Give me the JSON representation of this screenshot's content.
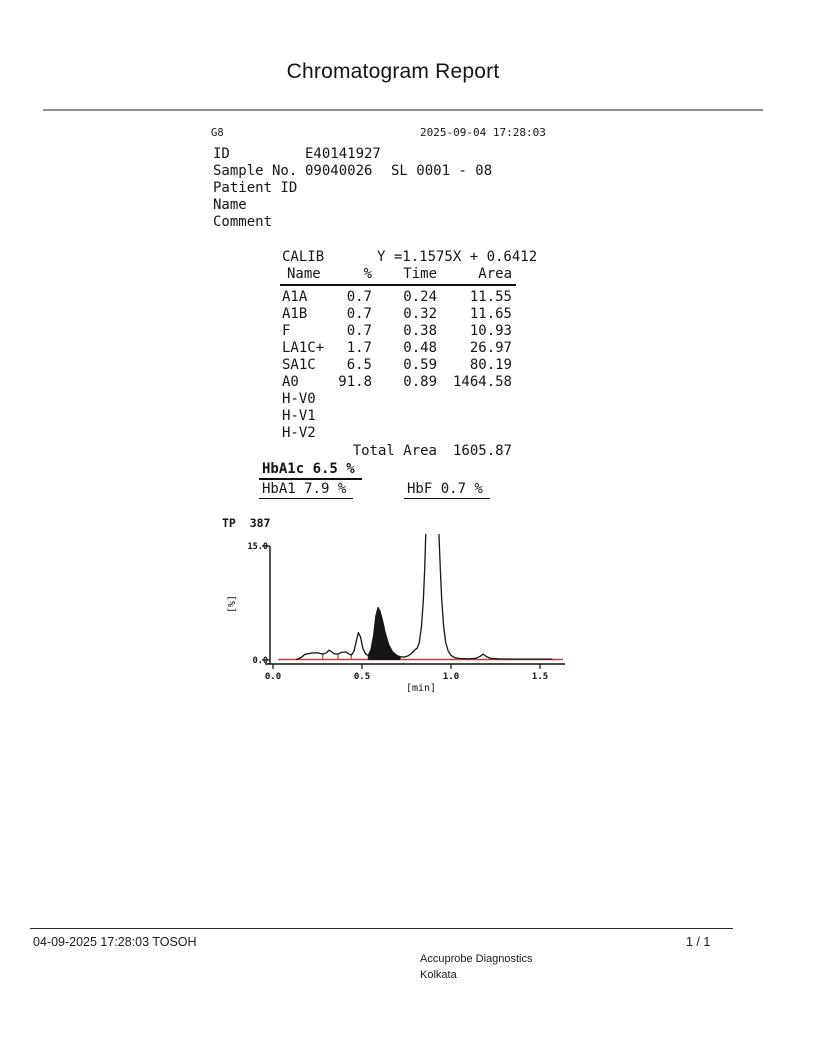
{
  "page": {
    "title": "Chromatogram Report",
    "footer": {
      "left": "04-09-2025 17:28:03  TOSOH",
      "page_num": "1 / 1",
      "org_name": "Accuprobe Diagnostics",
      "org_city": "Kolkata"
    }
  },
  "report": {
    "device": "G8",
    "datetime": "2025-09-04 17:28:03",
    "fields": [
      {
        "label": "ID",
        "value": "E40141927",
        "extra": ""
      },
      {
        "label": "Sample No.",
        "value": "09040026",
        "extra": "SL 0001 - 08"
      },
      {
        "label": "Patient ID",
        "value": "",
        "extra": ""
      },
      {
        "label": "Name",
        "value": "",
        "extra": ""
      },
      {
        "label": "Comment",
        "value": "",
        "extra": ""
      }
    ],
    "calib": {
      "label": "CALIB",
      "equation": "Y =1.1575X + 0.6412"
    },
    "table": {
      "headers": [
        "Name",
        "%",
        "Time",
        "Area"
      ],
      "rows": [
        {
          "name": "A1A",
          "pct": "0.7",
          "time": "0.24",
          "area": "11.55"
        },
        {
          "name": "A1B",
          "pct": "0.7",
          "time": "0.32",
          "area": "11.65"
        },
        {
          "name": "F",
          "pct": "0.7",
          "time": "0.38",
          "area": "10.93"
        },
        {
          "name": "LA1C+",
          "pct": "1.7",
          "time": "0.48",
          "area": "26.97"
        },
        {
          "name": "SA1C",
          "pct": "6.5",
          "time": "0.59",
          "area": "80.19"
        },
        {
          "name": "A0",
          "pct": "91.8",
          "time": "0.89",
          "area": "1464.58"
        },
        {
          "name": "H-V0",
          "pct": "",
          "time": "",
          "area": ""
        },
        {
          "name": "H-V1",
          "pct": "",
          "time": "",
          "area": ""
        },
        {
          "name": "H-V2",
          "pct": "",
          "time": "",
          "area": ""
        }
      ],
      "total_label": "Total Area",
      "total_value": "1605.87"
    },
    "results": {
      "hba1c": "HbA1c 6.5 %",
      "hba1": "HbA1 7.9 %",
      "hbf": "HbF 0.7 %"
    }
  },
  "chart_data": {
    "type": "line",
    "title": "TP  387",
    "xlabel": "[min]",
    "ylabel": "[%]",
    "xlim": [
      0.0,
      1.65
    ],
    "ylim": [
      0.0,
      15.0
    ],
    "x_ticks": [
      0.0,
      0.5,
      1.0,
      1.5
    ],
    "x_tick_labels": [
      "0.0",
      "0.5",
      "1.0",
      "1.5"
    ],
    "y_ticks": [
      {
        "v": 15.0,
        "label": "15.0"
      },
      {
        "v": 0.0,
        "label": "0.0"
      }
    ],
    "trace_color": "#161616",
    "baseline": {
      "x1": 0.03,
      "x2": 1.63,
      "color": "#b5433a"
    },
    "fill_base": {
      "x1": 0.535,
      "x2": 0.715,
      "color": "#7a140c"
    },
    "peak_markers": [
      {
        "x": 0.28,
        "h": 0.8
      },
      {
        "x": 0.365,
        "h": 0.75
      },
      {
        "x": 0.44,
        "h": 0.62
      },
      {
        "x": 0.535,
        "h": 0.6
      },
      {
        "x": 0.715,
        "h": 0.45
      }
    ],
    "clip_note": "A0 peak clipped at plot top",
    "peaks": [
      {
        "name": "A1A",
        "time": 0.24
      },
      {
        "name": "A1B",
        "time": 0.32
      },
      {
        "name": "F",
        "time": 0.38
      },
      {
        "name": "LA1C+",
        "time": 0.48
      },
      {
        "name": "SA1C",
        "time": 0.59,
        "filled": true
      },
      {
        "name": "A0",
        "time": 0.89
      }
    ],
    "trace": [
      [
        0.13,
        0.05
      ],
      [
        0.16,
        0.35
      ],
      [
        0.18,
        0.75
      ],
      [
        0.22,
        0.92
      ],
      [
        0.25,
        0.95
      ],
      [
        0.28,
        0.78
      ],
      [
        0.3,
        0.95
      ],
      [
        0.315,
        1.3
      ],
      [
        0.33,
        1.05
      ],
      [
        0.345,
        0.8
      ],
      [
        0.365,
        0.78
      ],
      [
        0.385,
        1.0
      ],
      [
        0.41,
        1.05
      ],
      [
        0.425,
        0.82
      ],
      [
        0.44,
        0.65
      ],
      [
        0.455,
        1.15
      ],
      [
        0.47,
        2.7
      ],
      [
        0.48,
        3.6
      ],
      [
        0.492,
        3.0
      ],
      [
        0.505,
        1.5
      ],
      [
        0.52,
        0.8
      ],
      [
        0.535,
        0.6
      ],
      [
        0.55,
        1.3
      ],
      [
        0.565,
        3.2
      ],
      [
        0.578,
        5.8
      ],
      [
        0.59,
        6.9
      ],
      [
        0.6,
        6.5
      ],
      [
        0.615,
        5.2
      ],
      [
        0.63,
        3.6
      ],
      [
        0.65,
        2.0
      ],
      [
        0.67,
        1.1
      ],
      [
        0.695,
        0.62
      ],
      [
        0.715,
        0.42
      ],
      [
        0.74,
        0.4
      ],
      [
        0.76,
        0.55
      ],
      [
        0.78,
        0.92
      ],
      [
        0.795,
        1.3
      ],
      [
        0.81,
        1.55
      ],
      [
        0.822,
        2.3
      ],
      [
        0.835,
        4.6
      ],
      [
        0.845,
        8.0
      ],
      [
        0.852,
        12.0
      ],
      [
        0.86,
        18.0
      ],
      [
        0.895,
        24.0
      ],
      [
        0.93,
        18.0
      ],
      [
        0.94,
        12.0
      ],
      [
        0.948,
        8.0
      ],
      [
        0.958,
        4.6
      ],
      [
        0.97,
        2.3
      ],
      [
        0.985,
        1.15
      ],
      [
        1.0,
        0.6
      ],
      [
        1.02,
        0.32
      ],
      [
        1.05,
        0.2
      ],
      [
        1.1,
        0.15
      ],
      [
        1.14,
        0.22
      ],
      [
        1.165,
        0.5
      ],
      [
        1.18,
        0.78
      ],
      [
        1.2,
        0.45
      ],
      [
        1.22,
        0.22
      ],
      [
        1.27,
        0.15
      ],
      [
        1.35,
        0.12
      ],
      [
        1.45,
        0.12
      ],
      [
        1.57,
        0.12
      ]
    ],
    "filled_peak": {
      "name": "SA1C",
      "points": [
        [
          0.535,
          0.0
        ],
        [
          0.535,
          0.6
        ],
        [
          0.55,
          1.3
        ],
        [
          0.565,
          3.2
        ],
        [
          0.578,
          5.8
        ],
        [
          0.59,
          6.9
        ],
        [
          0.6,
          6.5
        ],
        [
          0.615,
          5.2
        ],
        [
          0.63,
          3.6
        ],
        [
          0.65,
          2.0
        ],
        [
          0.67,
          1.1
        ],
        [
          0.695,
          0.62
        ],
        [
          0.715,
          0.42
        ],
        [
          0.715,
          0.0
        ]
      ]
    }
  }
}
